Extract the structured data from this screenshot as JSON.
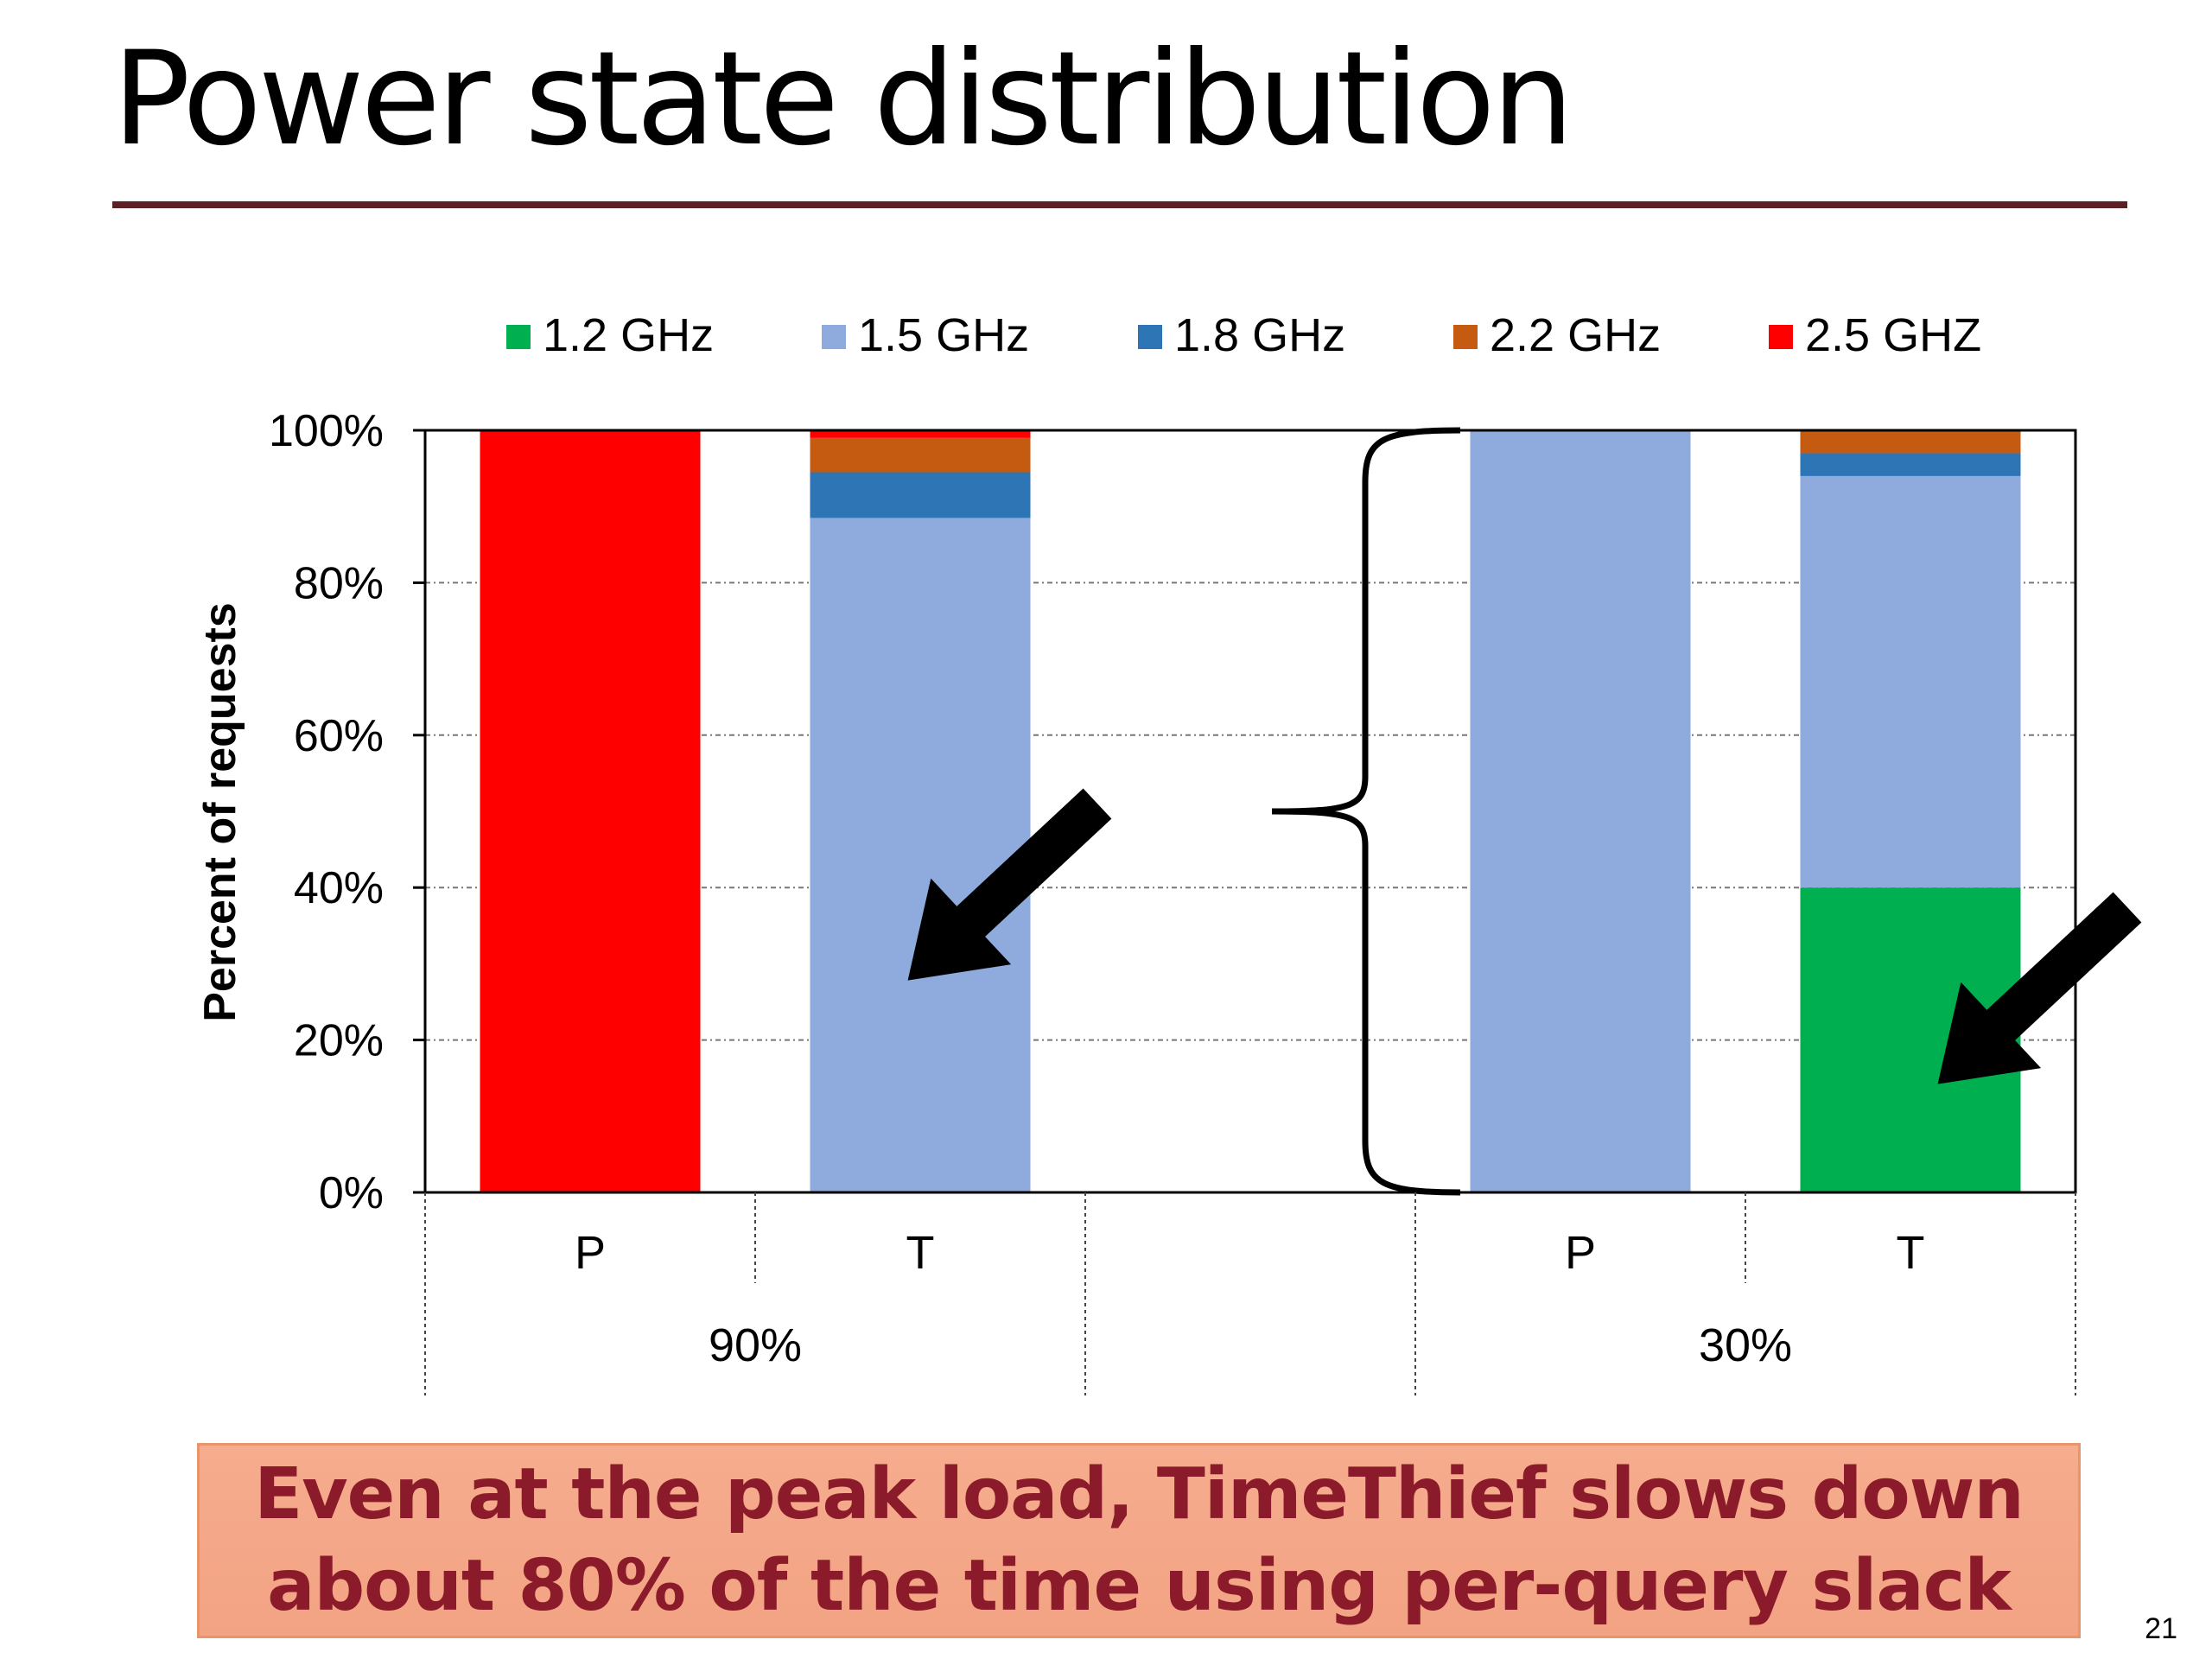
{
  "slide": {
    "title": "Power state distribution",
    "callout": "Even at the peak load, TimeThief slows down\nabout 80% of the time using per-query slack",
    "page_number": "21"
  },
  "chart_data": {
    "type": "bar",
    "stacked": true,
    "ylabel": "Percent of requests",
    "ylim": [
      0,
      100
    ],
    "yticks": [
      "0%",
      "20%",
      "40%",
      "60%",
      "80%",
      "100%"
    ],
    "grid": true,
    "legend_position": "top",
    "groups": [
      "90%",
      "",
      "30%"
    ],
    "categories": [
      "P",
      "T",
      "",
      "P",
      "T"
    ],
    "series": [
      {
        "name": "1.2 GHz",
        "color": "#00b050",
        "values": [
          0,
          0,
          null,
          0,
          40
        ]
      },
      {
        "name": "1.5 GHz",
        "color": "#8faadc",
        "values": [
          0,
          88.5,
          null,
          100,
          54
        ]
      },
      {
        "name": "1.8 GHz",
        "color": "#2e75b6",
        "values": [
          0,
          6,
          null,
          0,
          3
        ]
      },
      {
        "name": "2.2 GHz",
        "color": "#c55a11",
        "values": [
          0,
          4.5,
          null,
          0,
          3
        ]
      },
      {
        "name": "2.5 GHZ",
        "color": "#ff0000",
        "values": [
          100,
          1,
          null,
          0,
          0
        ]
      }
    ]
  }
}
